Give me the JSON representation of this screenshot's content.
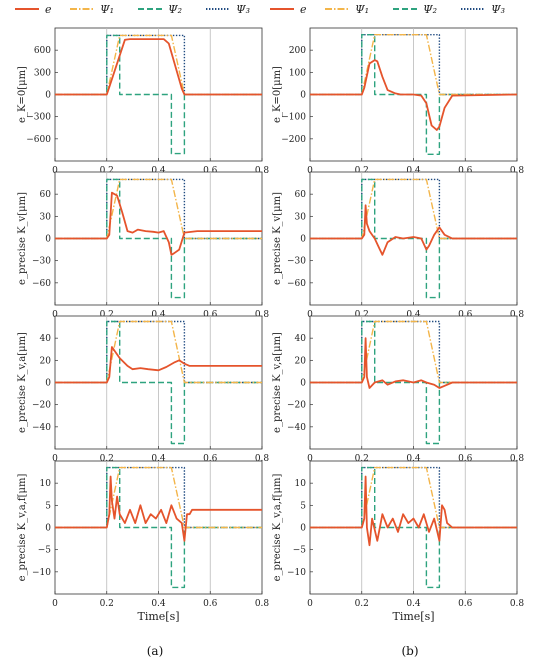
{
  "colors": {
    "e": "#e5542c",
    "psi1": "#f3b54a",
    "psi2": "#2ea37f",
    "psi3": "#1f4a80",
    "grid": "#bbbbbb",
    "axis": "#333333"
  },
  "legend": [
    {
      "key": "e",
      "label": "e",
      "style": "solid"
    },
    {
      "key": "psi1",
      "label": "Ψ₁",
      "style": "dashdot"
    },
    {
      "key": "psi2",
      "label": "Ψ₂",
      "style": "dashed"
    },
    {
      "key": "psi3",
      "label": "Ψ₃",
      "style": "dotted"
    }
  ],
  "x_axis": {
    "ticks": [
      0,
      0.2,
      0.4,
      0.6,
      0.8
    ],
    "tick_labels": [
      "0",
      "0.2",
      "0.4",
      "0.6",
      "0.8"
    ],
    "label": "Time[s]",
    "xlim": [
      0,
      0.8
    ]
  },
  "panel_labels": [
    "(a)",
    "(b)"
  ],
  "chart_data": [
    {
      "type": "line",
      "column": 0,
      "row": 0,
      "ylabel": "e_K=0[μm]",
      "ylim": [
        -900,
        900
      ],
      "yticks": [
        600,
        300,
        0,
        -300,
        -600
      ],
      "series": [
        {
          "key": "psi3",
          "x": [
            0,
            0.2,
            0.2,
            0.5,
            0.5,
            0.8
          ],
          "y": [
            0,
            0,
            800,
            800,
            0,
            0
          ]
        },
        {
          "key": "psi2",
          "x": [
            0,
            0.2,
            0.2,
            0.25,
            0.25,
            0.45,
            0.45,
            0.5,
            0.5,
            0.8
          ],
          "y": [
            0,
            0,
            800,
            800,
            0,
            0,
            -800,
            -800,
            0,
            0
          ]
        },
        {
          "key": "psi1",
          "x": [
            0,
            0.2,
            0.25,
            0.45,
            0.5,
            0.8
          ],
          "y": [
            0,
            0,
            800,
            800,
            0,
            0
          ]
        },
        {
          "key": "e",
          "x": [
            0,
            0.2,
            0.21,
            0.27,
            0.29,
            0.42,
            0.44,
            0.49,
            0.5,
            0.8
          ],
          "y": [
            0,
            0,
            100,
            740,
            750,
            750,
            690,
            80,
            0,
            0
          ]
        }
      ]
    },
    {
      "type": "line",
      "column": 0,
      "row": 1,
      "ylabel": "e_precise K_v[μm]",
      "ylim": [
        -90,
        90
      ],
      "yticks": [
        60,
        30,
        0,
        -30,
        -60
      ],
      "series": [
        {
          "key": "psi3",
          "x": [
            0,
            0.2,
            0.2,
            0.5,
            0.5,
            0.8
          ],
          "y": [
            0,
            0,
            80,
            80,
            0,
            0
          ]
        },
        {
          "key": "psi2",
          "x": [
            0,
            0.2,
            0.2,
            0.25,
            0.25,
            0.45,
            0.45,
            0.5,
            0.5,
            0.8
          ],
          "y": [
            0,
            0,
            80,
            80,
            0,
            0,
            -80,
            -80,
            0,
            0
          ]
        },
        {
          "key": "psi1",
          "x": [
            0,
            0.2,
            0.25,
            0.45,
            0.5,
            0.8
          ],
          "y": [
            0,
            0,
            80,
            80,
            0,
            0
          ]
        },
        {
          "key": "e",
          "x": [
            0,
            0.2,
            0.21,
            0.22,
            0.24,
            0.26,
            0.28,
            0.3,
            0.32,
            0.35,
            0.38,
            0.4,
            0.42,
            0.44,
            0.45,
            0.46,
            0.48,
            0.5,
            0.55,
            0.8
          ],
          "y": [
            0,
            0,
            5,
            62,
            58,
            35,
            10,
            8,
            12,
            10,
            9,
            8,
            10,
            -5,
            -22,
            -20,
            -15,
            8,
            10,
            10
          ]
        }
      ]
    },
    {
      "type": "line",
      "column": 0,
      "row": 2,
      "ylabel": "e_precise K_v,a[μm]",
      "ylim": [
        -60,
        60
      ],
      "yticks": [
        40,
        20,
        0,
        -20,
        -40
      ],
      "series": [
        {
          "key": "psi3",
          "x": [
            0,
            0.2,
            0.2,
            0.5,
            0.5,
            0.8
          ],
          "y": [
            0,
            0,
            55,
            55,
            0,
            0
          ]
        },
        {
          "key": "psi2",
          "x": [
            0,
            0.2,
            0.2,
            0.25,
            0.25,
            0.45,
            0.45,
            0.5,
            0.5,
            0.8
          ],
          "y": [
            0,
            0,
            55,
            55,
            0,
            0,
            -55,
            -55,
            0,
            0
          ]
        },
        {
          "key": "psi1",
          "x": [
            0,
            0.2,
            0.25,
            0.45,
            0.5,
            0.8
          ],
          "y": [
            0,
            0,
            55,
            55,
            0,
            0
          ]
        },
        {
          "key": "e",
          "x": [
            0,
            0.2,
            0.21,
            0.22,
            0.25,
            0.28,
            0.3,
            0.33,
            0.36,
            0.4,
            0.43,
            0.46,
            0.48,
            0.5,
            0.52,
            0.6,
            0.8
          ],
          "y": [
            0,
            0,
            5,
            32,
            22,
            15,
            12,
            13,
            12,
            11,
            14,
            18,
            20,
            17,
            15,
            15,
            15
          ]
        }
      ]
    },
    {
      "type": "line",
      "column": 0,
      "row": 3,
      "ylabel": "e_precise K_v,a,f[μm]",
      "ylim": [
        -15,
        15
      ],
      "yticks": [
        10,
        5,
        0,
        -5,
        -10
      ],
      "series": [
        {
          "key": "psi3",
          "x": [
            0,
            0.2,
            0.2,
            0.5,
            0.5,
            0.8
          ],
          "y": [
            0,
            0,
            13.5,
            13.5,
            0,
            0
          ]
        },
        {
          "key": "psi2",
          "x": [
            0,
            0.2,
            0.2,
            0.25,
            0.25,
            0.45,
            0.45,
            0.5,
            0.5,
            0.8
          ],
          "y": [
            0,
            0,
            13.5,
            13.5,
            0,
            0,
            -13.5,
            -13.5,
            0,
            0
          ]
        },
        {
          "key": "psi1",
          "x": [
            0,
            0.2,
            0.25,
            0.45,
            0.5,
            0.8
          ],
          "y": [
            0,
            0,
            13.5,
            13.5,
            0,
            0
          ]
        },
        {
          "key": "e",
          "x": [
            0,
            0.2,
            0.21,
            0.215,
            0.22,
            0.23,
            0.24,
            0.25,
            0.27,
            0.29,
            0.31,
            0.33,
            0.35,
            0.37,
            0.39,
            0.41,
            0.43,
            0.45,
            0.47,
            0.49,
            0.5,
            0.51,
            0.52,
            0.53,
            0.8
          ],
          "y": [
            0,
            0,
            3,
            11.5,
            6,
            2,
            7,
            3,
            1,
            4,
            1,
            5,
            1,
            3,
            2,
            4,
            1,
            5,
            2,
            1,
            -3,
            3,
            3,
            4,
            4
          ]
        }
      ]
    },
    {
      "type": "line",
      "column": 1,
      "row": 0,
      "ylabel": "e_K=0[μm]",
      "ylim": [
        -300,
        300
      ],
      "yticks": [
        200,
        100,
        0,
        -100,
        -200
      ],
      "series": [
        {
          "key": "psi3",
          "x": [
            0,
            0.2,
            0.2,
            0.5,
            0.5,
            0.8
          ],
          "y": [
            0,
            0,
            270,
            270,
            0,
            0
          ]
        },
        {
          "key": "psi2",
          "x": [
            0,
            0.2,
            0.2,
            0.25,
            0.25,
            0.45,
            0.45,
            0.5,
            0.5,
            0.8
          ],
          "y": [
            0,
            0,
            270,
            270,
            0,
            0,
            -270,
            -270,
            0,
            0
          ]
        },
        {
          "key": "psi1",
          "x": [
            0,
            0.2,
            0.25,
            0.45,
            0.5,
            0.8
          ],
          "y": [
            0,
            0,
            270,
            270,
            0,
            0
          ]
        },
        {
          "key": "e",
          "x": [
            0,
            0.2,
            0.21,
            0.23,
            0.25,
            0.26,
            0.28,
            0.3,
            0.33,
            0.35,
            0.4,
            0.43,
            0.45,
            0.47,
            0.49,
            0.5,
            0.52,
            0.55,
            0.8
          ],
          "y": [
            0,
            0,
            30,
            140,
            155,
            150,
            80,
            20,
            5,
            0,
            0,
            -5,
            -40,
            -140,
            -160,
            -145,
            -60,
            -5,
            0
          ]
        }
      ]
    },
    {
      "type": "line",
      "column": 1,
      "row": 1,
      "ylabel": "e_precise K_v[μm]",
      "ylim": [
        -90,
        90
      ],
      "yticks": [
        60,
        30,
        0,
        -30,
        -60
      ],
      "series": [
        {
          "key": "psi3",
          "x": [
            0,
            0.2,
            0.2,
            0.5,
            0.5,
            0.8
          ],
          "y": [
            0,
            0,
            80,
            80,
            0,
            0
          ]
        },
        {
          "key": "psi2",
          "x": [
            0,
            0.2,
            0.2,
            0.25,
            0.25,
            0.45,
            0.45,
            0.5,
            0.5,
            0.8
          ],
          "y": [
            0,
            0,
            80,
            80,
            0,
            0,
            -80,
            -80,
            0,
            0
          ]
        },
        {
          "key": "psi1",
          "x": [
            0,
            0.2,
            0.25,
            0.45,
            0.5,
            0.8
          ],
          "y": [
            0,
            0,
            80,
            80,
            0,
            0
          ]
        },
        {
          "key": "e",
          "x": [
            0,
            0.2,
            0.21,
            0.215,
            0.22,
            0.23,
            0.25,
            0.27,
            0.28,
            0.3,
            0.33,
            0.36,
            0.4,
            0.43,
            0.45,
            0.46,
            0.48,
            0.5,
            0.52,
            0.55,
            0.8
          ],
          "y": [
            0,
            0,
            5,
            45,
            20,
            10,
            0,
            -15,
            -22,
            -5,
            2,
            0,
            2,
            0,
            -15,
            -10,
            5,
            15,
            5,
            0,
            0
          ]
        }
      ]
    },
    {
      "type": "line",
      "column": 1,
      "row": 2,
      "ylabel": "e_precise K_v,a[μm]",
      "ylim": [
        -60,
        60
      ],
      "yticks": [
        40,
        20,
        0,
        -20,
        -40
      ],
      "series": [
        {
          "key": "psi3",
          "x": [
            0,
            0.2,
            0.2,
            0.5,
            0.5,
            0.8
          ],
          "y": [
            0,
            0,
            55,
            55,
            0,
            0
          ]
        },
        {
          "key": "psi2",
          "x": [
            0,
            0.2,
            0.2,
            0.25,
            0.25,
            0.45,
            0.45,
            0.5,
            0.5,
            0.8
          ],
          "y": [
            0,
            0,
            55,
            55,
            0,
            0,
            -55,
            -55,
            0,
            0
          ]
        },
        {
          "key": "psi1",
          "x": [
            0,
            0.2,
            0.25,
            0.45,
            0.5,
            0.8
          ],
          "y": [
            0,
            0,
            55,
            55,
            0,
            0
          ]
        },
        {
          "key": "e",
          "x": [
            0,
            0.2,
            0.21,
            0.215,
            0.22,
            0.23,
            0.25,
            0.28,
            0.3,
            0.33,
            0.36,
            0.4,
            0.43,
            0.45,
            0.48,
            0.5,
            0.52,
            0.55,
            0.8
          ],
          "y": [
            0,
            0,
            5,
            40,
            5,
            -5,
            0,
            2,
            -2,
            1,
            2,
            0,
            2,
            0,
            -2,
            -5,
            -3,
            0,
            0
          ]
        }
      ]
    },
    {
      "type": "line",
      "column": 1,
      "row": 3,
      "ylabel": "e_precise K_v,a,f[μm]",
      "ylim": [
        -15,
        15
      ],
      "yticks": [
        10,
        5,
        0,
        -5,
        -10
      ],
      "series": [
        {
          "key": "psi3",
          "x": [
            0,
            0.2,
            0.2,
            0.5,
            0.5,
            0.8
          ],
          "y": [
            0,
            0,
            13.5,
            13.5,
            0,
            0
          ]
        },
        {
          "key": "psi2",
          "x": [
            0,
            0.2,
            0.2,
            0.25,
            0.25,
            0.45,
            0.45,
            0.5,
            0.5,
            0.8
          ],
          "y": [
            0,
            0,
            13.5,
            13.5,
            0,
            0,
            -13.5,
            -13.5,
            0,
            0
          ]
        },
        {
          "key": "psi1",
          "x": [
            0,
            0.2,
            0.25,
            0.45,
            0.5,
            0.8
          ],
          "y": [
            0,
            0,
            13.5,
            13.5,
            0,
            0
          ]
        },
        {
          "key": "e",
          "x": [
            0,
            0.2,
            0.21,
            0.215,
            0.22,
            0.23,
            0.24,
            0.26,
            0.28,
            0.3,
            0.32,
            0.34,
            0.36,
            0.38,
            0.4,
            0.42,
            0.44,
            0.46,
            0.48,
            0.5,
            0.51,
            0.52,
            0.53,
            0.55,
            0.8
          ],
          "y": [
            0,
            0,
            2,
            11.5,
            0,
            -4,
            2,
            -3,
            3,
            0,
            2,
            -1,
            3,
            1,
            2,
            0,
            3,
            -1,
            2,
            -3,
            5,
            4,
            1,
            0,
            0
          ]
        }
      ]
    }
  ]
}
